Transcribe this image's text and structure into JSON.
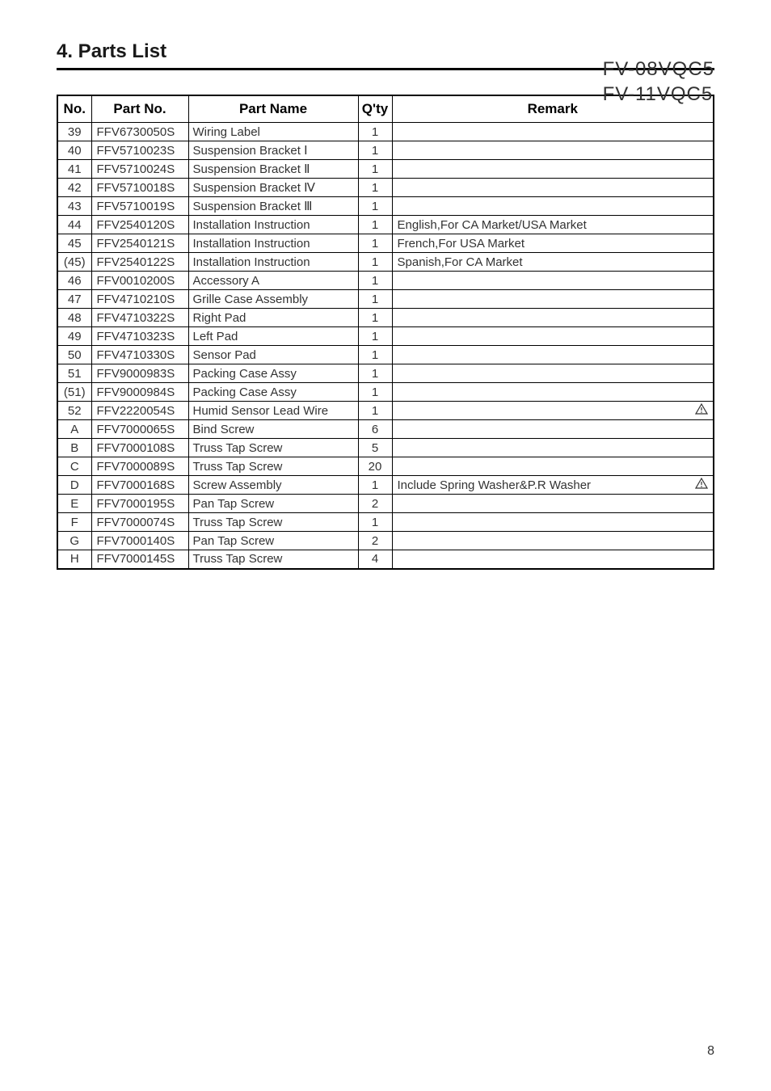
{
  "header": {
    "section_title": "4. Parts List",
    "model_line_1": "FV-08VQC5",
    "model_line_2": "FV-11VQC5"
  },
  "table": {
    "columns": {
      "no": "No.",
      "part_no": "Part No.",
      "part_name": "Part Name",
      "qty": "Q'ty",
      "remark": "Remark"
    },
    "col_styles": {
      "no_width": 42,
      "partno_width": 120,
      "partname_width": 210,
      "qty_width": 42,
      "border_color": "#000000",
      "outer_border_width": 2,
      "inner_border_width": 1,
      "header_fontsize": 17,
      "cell_fontsize": 15,
      "text_color": "#333333"
    },
    "rows": [
      {
        "no": "39",
        "part_no": "FFV6730050S",
        "part_name": "Wiring Label",
        "qty": "1",
        "remark": "",
        "warning": false
      },
      {
        "no": "40",
        "part_no": "FFV5710023S",
        "part_name": "Suspension Bracket Ⅰ",
        "qty": "1",
        "remark": "",
        "warning": false
      },
      {
        "no": "41",
        "part_no": "FFV5710024S",
        "part_name": "Suspension Bracket Ⅱ",
        "qty": "1",
        "remark": "",
        "warning": false
      },
      {
        "no": "42",
        "part_no": "FFV5710018S",
        "part_name": "Suspension Bracket Ⅳ",
        "qty": "1",
        "remark": "",
        "warning": false
      },
      {
        "no": "43",
        "part_no": "FFV5710019S",
        "part_name": "Suspension Bracket Ⅲ",
        "qty": "1",
        "remark": "",
        "warning": false
      },
      {
        "no": "44",
        "part_no": "FFV2540120S",
        "part_name": "Installation Instruction",
        "qty": "1",
        "remark": "English,For CA Market/USA Market",
        "warning": false
      },
      {
        "no": "45",
        "part_no": "FFV2540121S",
        "part_name": "Installation Instruction",
        "qty": "1",
        "remark": "French,For USA Market",
        "warning": false
      },
      {
        "no": "(45)",
        "part_no": "FFV2540122S",
        "part_name": "Installation Instruction",
        "qty": "1",
        "remark": "Spanish,For CA Market",
        "warning": false
      },
      {
        "no": "46",
        "part_no": "FFV0010200S",
        "part_name": "Accessory A",
        "qty": "1",
        "remark": "",
        "warning": false
      },
      {
        "no": "47",
        "part_no": "FFV4710210S",
        "part_name": "Grille Case Assembly",
        "qty": "1",
        "remark": "",
        "warning": false
      },
      {
        "no": "48",
        "part_no": "FFV4710322S",
        "part_name": "Right Pad",
        "qty": "1",
        "remark": "",
        "warning": false
      },
      {
        "no": "49",
        "part_no": "FFV4710323S",
        "part_name": "Left Pad",
        "qty": "1",
        "remark": "",
        "warning": false
      },
      {
        "no": "50",
        "part_no": "FFV4710330S",
        "part_name": "Sensor Pad",
        "qty": "1",
        "remark": "",
        "warning": false
      },
      {
        "no": "51",
        "part_no": "FFV9000983S",
        "part_name": "Packing Case Assy",
        "qty": "1",
        "remark": "",
        "warning": false
      },
      {
        "no": "(51)",
        "part_no": "FFV9000984S",
        "part_name": "Packing Case Assy",
        "qty": "1",
        "remark": "",
        "warning": false
      },
      {
        "no": "52",
        "part_no": "FFV2220054S",
        "part_name": "Humid Sensor Lead Wire",
        "qty": "1",
        "remark": "",
        "warning": true
      },
      {
        "no": "A",
        "part_no": "FFV7000065S",
        "part_name": "Bind Screw",
        "qty": "6",
        "remark": "",
        "warning": false
      },
      {
        "no": "B",
        "part_no": "FFV7000108S",
        "part_name": "Truss Tap Screw",
        "qty": "5",
        "remark": "",
        "warning": false
      },
      {
        "no": "C",
        "part_no": "FFV7000089S",
        "part_name": "Truss Tap Screw",
        "qty": "20",
        "remark": "",
        "warning": false
      },
      {
        "no": "D",
        "part_no": "FFV7000168S",
        "part_name": "Screw Assembly",
        "qty": "1",
        "remark": "Include Spring Washer&P.R Washer",
        "warning": true
      },
      {
        "no": "E",
        "part_no": "FFV7000195S",
        "part_name": "Pan Tap Screw",
        "qty": "2",
        "remark": "",
        "warning": false
      },
      {
        "no": "F",
        "part_no": "FFV7000074S",
        "part_name": "Truss Tap Screw",
        "qty": "1",
        "remark": "",
        "warning": false
      },
      {
        "no": "G",
        "part_no": "FFV7000140S",
        "part_name": "Pan Tap Screw",
        "qty": "2",
        "remark": "",
        "warning": false
      },
      {
        "no": "H",
        "part_no": "FFV7000145S",
        "part_name": "Truss Tap Screw",
        "qty": "4",
        "remark": "",
        "warning": false
      }
    ]
  },
  "page_number": "8"
}
